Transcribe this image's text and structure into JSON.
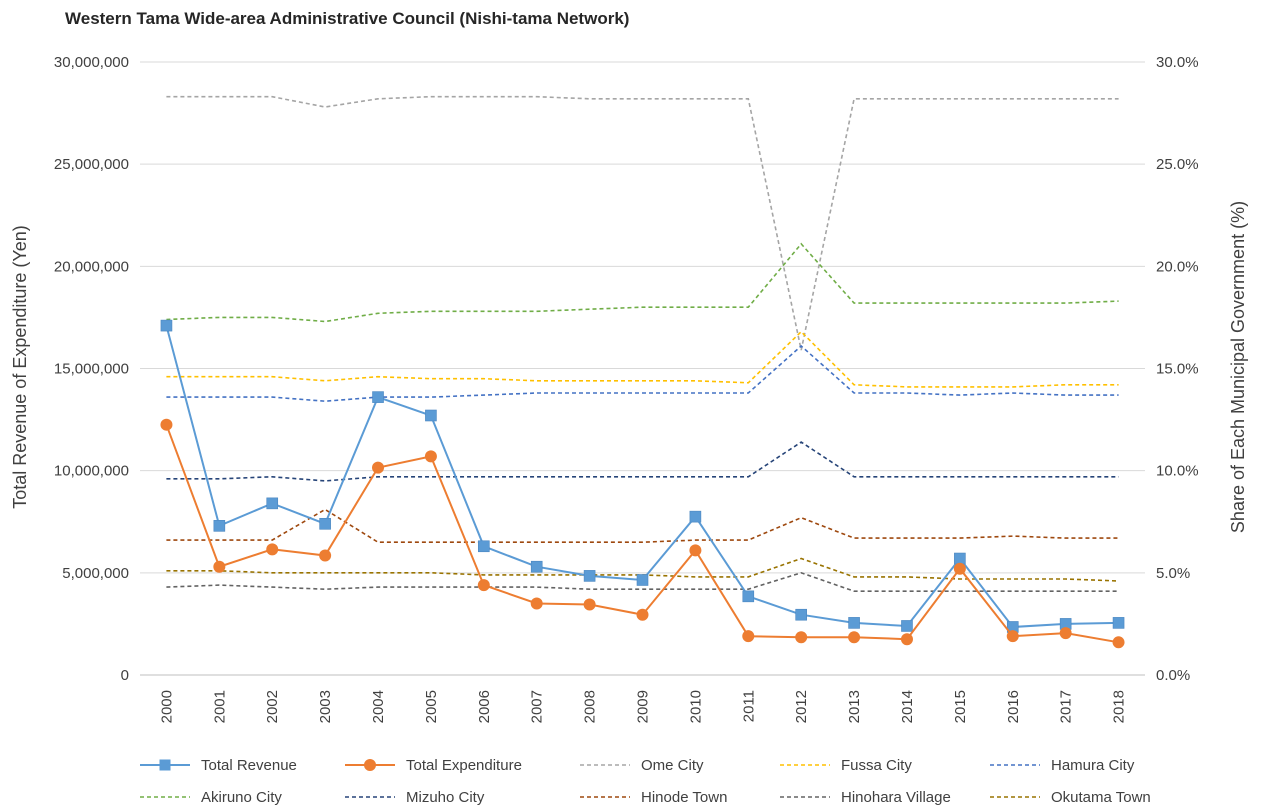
{
  "chart_data": {
    "type": "line",
    "title": "Western Tama Wide-area Administrative Council (Nishi-tama Network)",
    "xlabel": "",
    "ylabel": "Total Revenue of Expenditure (Yen)",
    "y2label": "Share of Each Municipal Government (%)",
    "categories": [
      "2000",
      "2001",
      "2002",
      "2003",
      "2004",
      "2005",
      "2006",
      "2007",
      "2008",
      "2009",
      "2010",
      "2011",
      "2012",
      "2013",
      "2014",
      "2015",
      "2016",
      "2017",
      "2018"
    ],
    "ylim": [
      0,
      30000000
    ],
    "y2lim": [
      0,
      30
    ],
    "y_ticks": [
      "0",
      "5,000,000",
      "10,000,000",
      "15,000,000",
      "20,000,000",
      "25,000,000",
      "30,000,000"
    ],
    "y2_ticks": [
      "0.0%",
      "5.0%",
      "10.0%",
      "15.0%",
      "20.0%",
      "25.0%",
      "30.0%"
    ],
    "grid": true,
    "legend_position": "bottom",
    "primary_series": [
      {
        "name": "Total Revenue",
        "color": "#5b9bd5",
        "marker": "square",
        "values": [
          17100000,
          7300000,
          8400000,
          7400000,
          13600000,
          12700000,
          6300000,
          5300000,
          4850000,
          4650000,
          7750000,
          3850000,
          2950000,
          2550000,
          2400000,
          5700000,
          2350000,
          2500000,
          2550000
        ]
      },
      {
        "name": "Total Expenditure",
        "color": "#ed7d31",
        "marker": "circle",
        "values": [
          12250000,
          5300000,
          6150000,
          5850000,
          10150000,
          10700000,
          4400000,
          3500000,
          3450000,
          2950000,
          6100000,
          1900000,
          1850000,
          1850000,
          1750000,
          5200000,
          1900000,
          2050000,
          1600000
        ]
      }
    ],
    "secondary_series": [
      {
        "name": "Ome City",
        "color": "#a5a5a5",
        "values": [
          28.3,
          28.3,
          28.3,
          27.8,
          28.2,
          28.3,
          28.3,
          28.3,
          28.2,
          28.2,
          28.2,
          28.2,
          15.9,
          28.2,
          28.2,
          28.2,
          28.2,
          28.2,
          28.2
        ]
      },
      {
        "name": "Fussa City",
        "color": "#ffc000",
        "values": [
          14.6,
          14.6,
          14.6,
          14.4,
          14.6,
          14.5,
          14.5,
          14.4,
          14.4,
          14.4,
          14.4,
          14.3,
          16.8,
          14.2,
          14.1,
          14.1,
          14.1,
          14.2,
          14.2
        ]
      },
      {
        "name": "Hamura City",
        "color": "#4472c4",
        "values": [
          13.6,
          13.6,
          13.6,
          13.4,
          13.6,
          13.6,
          13.7,
          13.8,
          13.8,
          13.8,
          13.8,
          13.8,
          16.1,
          13.8,
          13.8,
          13.7,
          13.8,
          13.7,
          13.7
        ]
      },
      {
        "name": "Akiruno City",
        "color": "#70ad47",
        "values": [
          17.4,
          17.5,
          17.5,
          17.3,
          17.7,
          17.8,
          17.8,
          17.8,
          17.9,
          18.0,
          18.0,
          18.0,
          21.1,
          18.2,
          18.2,
          18.2,
          18.2,
          18.2,
          18.3
        ]
      },
      {
        "name": "Mizuho City",
        "color": "#264478",
        "values": [
          9.6,
          9.6,
          9.7,
          9.5,
          9.7,
          9.7,
          9.7,
          9.7,
          9.7,
          9.7,
          9.7,
          9.7,
          11.4,
          9.7,
          9.7,
          9.7,
          9.7,
          9.7,
          9.7
        ]
      },
      {
        "name": "Hinode Town",
        "color": "#9e480e",
        "values": [
          6.6,
          6.6,
          6.6,
          8.1,
          6.5,
          6.5,
          6.5,
          6.5,
          6.5,
          6.5,
          6.6,
          6.6,
          7.7,
          6.7,
          6.7,
          6.7,
          6.8,
          6.7,
          6.7
        ]
      },
      {
        "name": "Hinohara Village",
        "color": "#636363",
        "values": [
          4.3,
          4.4,
          4.3,
          4.2,
          4.3,
          4.3,
          4.3,
          4.3,
          4.2,
          4.2,
          4.2,
          4.2,
          5.0,
          4.1,
          4.1,
          4.1,
          4.1,
          4.1,
          4.1
        ]
      },
      {
        "name": "Okutama Town",
        "color": "#997300",
        "values": [
          5.1,
          5.1,
          5.0,
          5.0,
          5.0,
          5.0,
          4.9,
          4.9,
          4.9,
          4.9,
          4.8,
          4.8,
          5.7,
          4.8,
          4.8,
          4.7,
          4.7,
          4.7,
          4.6
        ]
      }
    ]
  }
}
